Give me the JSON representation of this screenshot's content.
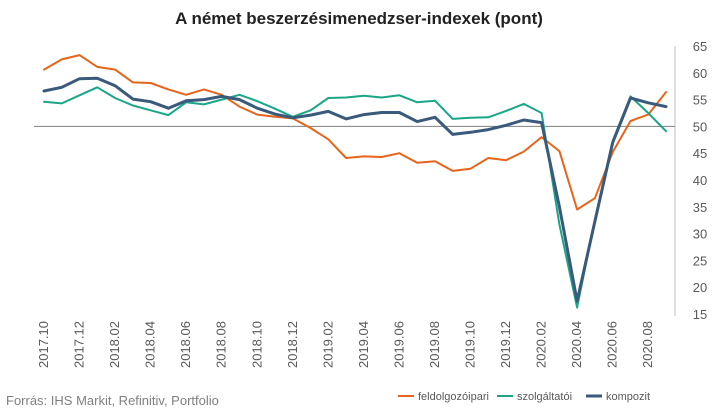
{
  "chart_data": {
    "type": "line",
    "title": "A német beszerzésimenedzser-indexek (pont)",
    "source": "Forrás: IHS Markit, Refinitiv, Portfolio",
    "ylim": [
      15,
      65
    ],
    "yticks": [
      15,
      20,
      25,
      30,
      35,
      40,
      45,
      50,
      55,
      60,
      65
    ],
    "reference_line": 50,
    "grid": false,
    "legend_position": "bottom-right",
    "x": [
      "2017.10",
      "2017.11",
      "2017.12",
      "2018.01",
      "2018.02",
      "2018.03",
      "2018.04",
      "2018.05",
      "2018.06",
      "2018.07",
      "2018.08",
      "2018.09",
      "2018.10",
      "2018.11",
      "2018.12",
      "2019.01",
      "2019.02",
      "2019.03",
      "2019.04",
      "2019.05",
      "2019.06",
      "2019.07",
      "2019.08",
      "2019.09",
      "2019.10",
      "2019.11",
      "2019.12",
      "2020.01",
      "2020.02",
      "2020.03",
      "2020.04",
      "2020.05",
      "2020.06",
      "2020.07",
      "2020.08",
      "2020.09"
    ],
    "x_tick_labels": [
      "2017.10",
      "2017.12",
      "2018.02",
      "2018.04",
      "2018.06",
      "2018.08",
      "2018.10",
      "2018.12",
      "2019.02",
      "2019.04",
      "2019.06",
      "2019.08",
      "2019.10",
      "2019.12",
      "2020.02",
      "2020.04",
      "2020.06",
      "2020.08"
    ],
    "series": [
      {
        "name": "feldolgozóipari",
        "color": "#e8641b",
        "values": [
          60.6,
          62.5,
          63.3,
          61.1,
          60.6,
          58.2,
          58.1,
          56.9,
          55.9,
          56.9,
          55.9,
          53.7,
          52.2,
          51.8,
          51.5,
          49.7,
          47.6,
          44.1,
          44.4,
          44.3,
          45.0,
          43.2,
          43.5,
          41.7,
          42.1,
          44.1,
          43.7,
          45.3,
          48.0,
          45.4,
          34.5,
          36.6,
          45.2,
          51.0,
          52.2,
          56.4
        ]
      },
      {
        "name": "szolgáltatói",
        "color": "#1aa687",
        "values": [
          54.6,
          54.3,
          55.8,
          57.3,
          55.3,
          53.9,
          53.0,
          52.1,
          54.5,
          54.1,
          55.0,
          55.9,
          54.7,
          53.3,
          51.8,
          53.0,
          55.3,
          55.4,
          55.7,
          55.4,
          55.8,
          54.5,
          54.8,
          51.4,
          51.6,
          51.7,
          52.9,
          54.2,
          52.5,
          31.7,
          16.2,
          32.6,
          47.3,
          55.6,
          52.5,
          49.1
        ]
      },
      {
        "name": "kompozit",
        "color": "#3a5a7c",
        "values": [
          56.6,
          57.3,
          58.9,
          59.0,
          57.6,
          55.1,
          54.6,
          53.4,
          54.8,
          55.0,
          55.6,
          55.0,
          53.4,
          52.3,
          51.6,
          52.1,
          52.8,
          51.4,
          52.2,
          52.6,
          52.6,
          50.9,
          51.7,
          48.5,
          48.9,
          49.4,
          50.2,
          51.2,
          50.7,
          35.0,
          17.4,
          32.3,
          47.0,
          55.3,
          54.4,
          53.7
        ]
      }
    ]
  }
}
